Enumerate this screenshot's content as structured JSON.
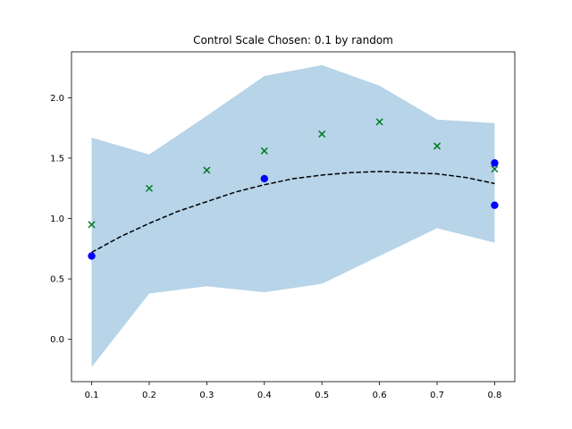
{
  "chart_data": {
    "type": "scatter",
    "title": "Control Scale Chosen: 0.1 by random",
    "xlabel": "",
    "ylabel": "",
    "xlim": [
      0.065,
      0.835
    ],
    "ylim": [
      -0.35,
      2.38
    ],
    "x_ticks": [
      0.1,
      0.2,
      0.3,
      0.4,
      0.5,
      0.6,
      0.7,
      0.8
    ],
    "x_tick_labels": [
      "0.1",
      "0.2",
      "0.3",
      "0.4",
      "0.5",
      "0.6",
      "0.7",
      "0.8"
    ],
    "y_ticks": [
      0.0,
      0.5,
      1.0,
      1.5,
      2.0
    ],
    "y_tick_labels": [
      "0.0",
      "0.5",
      "1.0",
      "1.5",
      "2.0"
    ],
    "grid": false,
    "legend": "none",
    "band": {
      "x": [
        0.1,
        0.2,
        0.3,
        0.4,
        0.5,
        0.6,
        0.7,
        0.8
      ],
      "lower": [
        -0.23,
        0.38,
        0.44,
        0.39,
        0.46,
        0.69,
        0.92,
        0.8
      ],
      "upper": [
        1.67,
        1.53,
        1.85,
        2.18,
        2.27,
        2.1,
        1.82,
        1.79
      ],
      "color": "#b7d4e8"
    },
    "mean_line": {
      "x": [
        0.1,
        0.15,
        0.2,
        0.25,
        0.3,
        0.35,
        0.4,
        0.45,
        0.5,
        0.55,
        0.6,
        0.65,
        0.7,
        0.75,
        0.8
      ],
      "y": [
        0.72,
        0.85,
        0.96,
        1.06,
        1.14,
        1.22,
        1.28,
        1.33,
        1.36,
        1.38,
        1.39,
        1.38,
        1.37,
        1.34,
        1.29
      ],
      "color": "#000000",
      "style": "dashed"
    },
    "observed": {
      "x": [
        0.1,
        0.4,
        0.8,
        0.8
      ],
      "y": [
        0.69,
        1.33,
        1.46,
        1.11
      ],
      "color": "#0000ff",
      "marker": "circle"
    },
    "true_values": {
      "x": [
        0.1,
        0.2,
        0.3,
        0.4,
        0.5,
        0.6,
        0.7,
        0.8
      ],
      "y": [
        0.95,
        1.25,
        1.4,
        1.56,
        1.7,
        1.8,
        1.6,
        1.41
      ],
      "color": "#007a24",
      "marker": "x"
    }
  }
}
